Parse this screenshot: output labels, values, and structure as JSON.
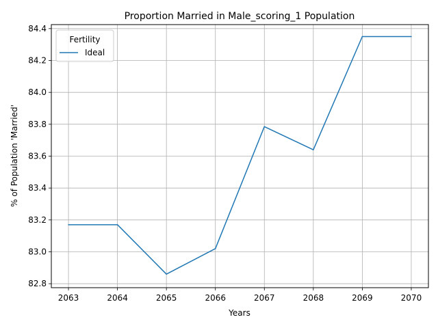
{
  "chart_data": {
    "type": "line",
    "title": "Proportion Married in Male_scoring_1 Population",
    "xlabel": "Years",
    "ylabel": "% of Population 'Married'",
    "x": [
      2063,
      2064,
      2065,
      2066,
      2067,
      2068,
      2069,
      2070
    ],
    "xlim": [
      2062.65,
      2070.35
    ],
    "ylim": [
      82.775,
      84.425
    ],
    "x_ticks": [
      "2063",
      "2064",
      "2065",
      "2066",
      "2067",
      "2068",
      "2069",
      "2070"
    ],
    "y_ticks": [
      "82.8",
      "83.0",
      "83.2",
      "83.4",
      "83.6",
      "83.8",
      "84.0",
      "84.2",
      "84.4"
    ],
    "grid": true,
    "legend": {
      "title": "Fertility",
      "placement": "top-left"
    },
    "series": [
      {
        "name": "Ideal",
        "color": "#1f77b4",
        "values": [
          83.17,
          83.17,
          82.86,
          83.02,
          83.785,
          83.64,
          84.35,
          84.35
        ]
      }
    ]
  }
}
